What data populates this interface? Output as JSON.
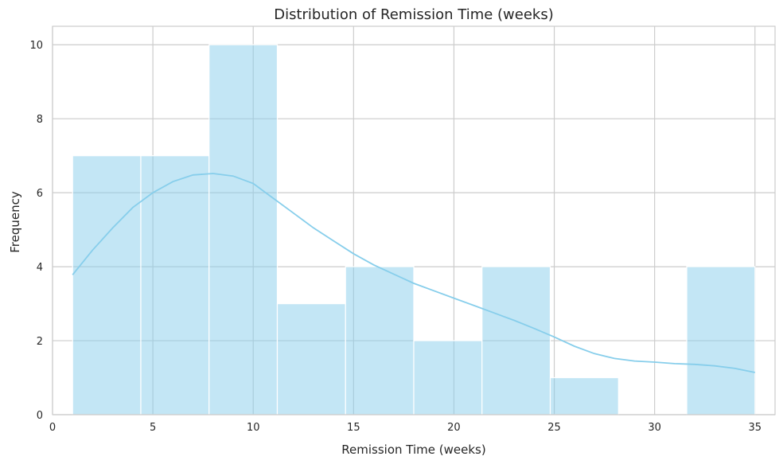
{
  "chart_data": {
    "type": "histogram",
    "title": "Distribution of Remission Time (weeks)",
    "xlabel": "Remission Time (weeks)",
    "ylabel": "Frequency",
    "xlim": [
      0,
      36
    ],
    "ylim": [
      0,
      10.5
    ],
    "xticks": [
      0,
      5,
      10,
      15,
      20,
      25,
      30,
      35
    ],
    "yticks": [
      0,
      2,
      4,
      6,
      8,
      10
    ],
    "grid": true,
    "bins": [
      {
        "start": 1.0,
        "end": 4.4,
        "count": 7
      },
      {
        "start": 4.4,
        "end": 7.8,
        "count": 7
      },
      {
        "start": 7.8,
        "end": 11.2,
        "count": 10
      },
      {
        "start": 11.2,
        "end": 14.6,
        "count": 3
      },
      {
        "start": 14.6,
        "end": 18.0,
        "count": 4
      },
      {
        "start": 18.0,
        "end": 21.4,
        "count": 2
      },
      {
        "start": 21.4,
        "end": 24.8,
        "count": 4
      },
      {
        "start": 24.8,
        "end": 28.2,
        "count": 1
      },
      {
        "start": 28.2,
        "end": 31.6,
        "count": 0
      },
      {
        "start": 31.6,
        "end": 35.0,
        "count": 4
      }
    ],
    "kde": {
      "x": [
        1,
        2,
        3,
        4,
        5,
        6,
        7,
        8,
        9,
        10,
        11,
        12,
        13,
        14,
        15,
        16,
        17,
        18,
        19,
        20,
        21,
        22,
        23,
        24,
        25,
        26,
        27,
        28,
        29,
        30,
        31,
        32,
        33,
        34,
        35
      ],
      "y": [
        3.78,
        4.45,
        5.05,
        5.6,
        6.0,
        6.3,
        6.48,
        6.52,
        6.45,
        6.25,
        5.85,
        5.45,
        5.05,
        4.7,
        4.35,
        4.05,
        3.8,
        3.55,
        3.35,
        3.15,
        2.95,
        2.75,
        2.55,
        2.33,
        2.1,
        1.85,
        1.65,
        1.52,
        1.45,
        1.42,
        1.38,
        1.36,
        1.32,
        1.25,
        1.14
      ]
    },
    "colors": {
      "bar_fill": "#87ceeb",
      "bar_opacity": 0.5,
      "kde_line": "#87ceeb"
    }
  }
}
